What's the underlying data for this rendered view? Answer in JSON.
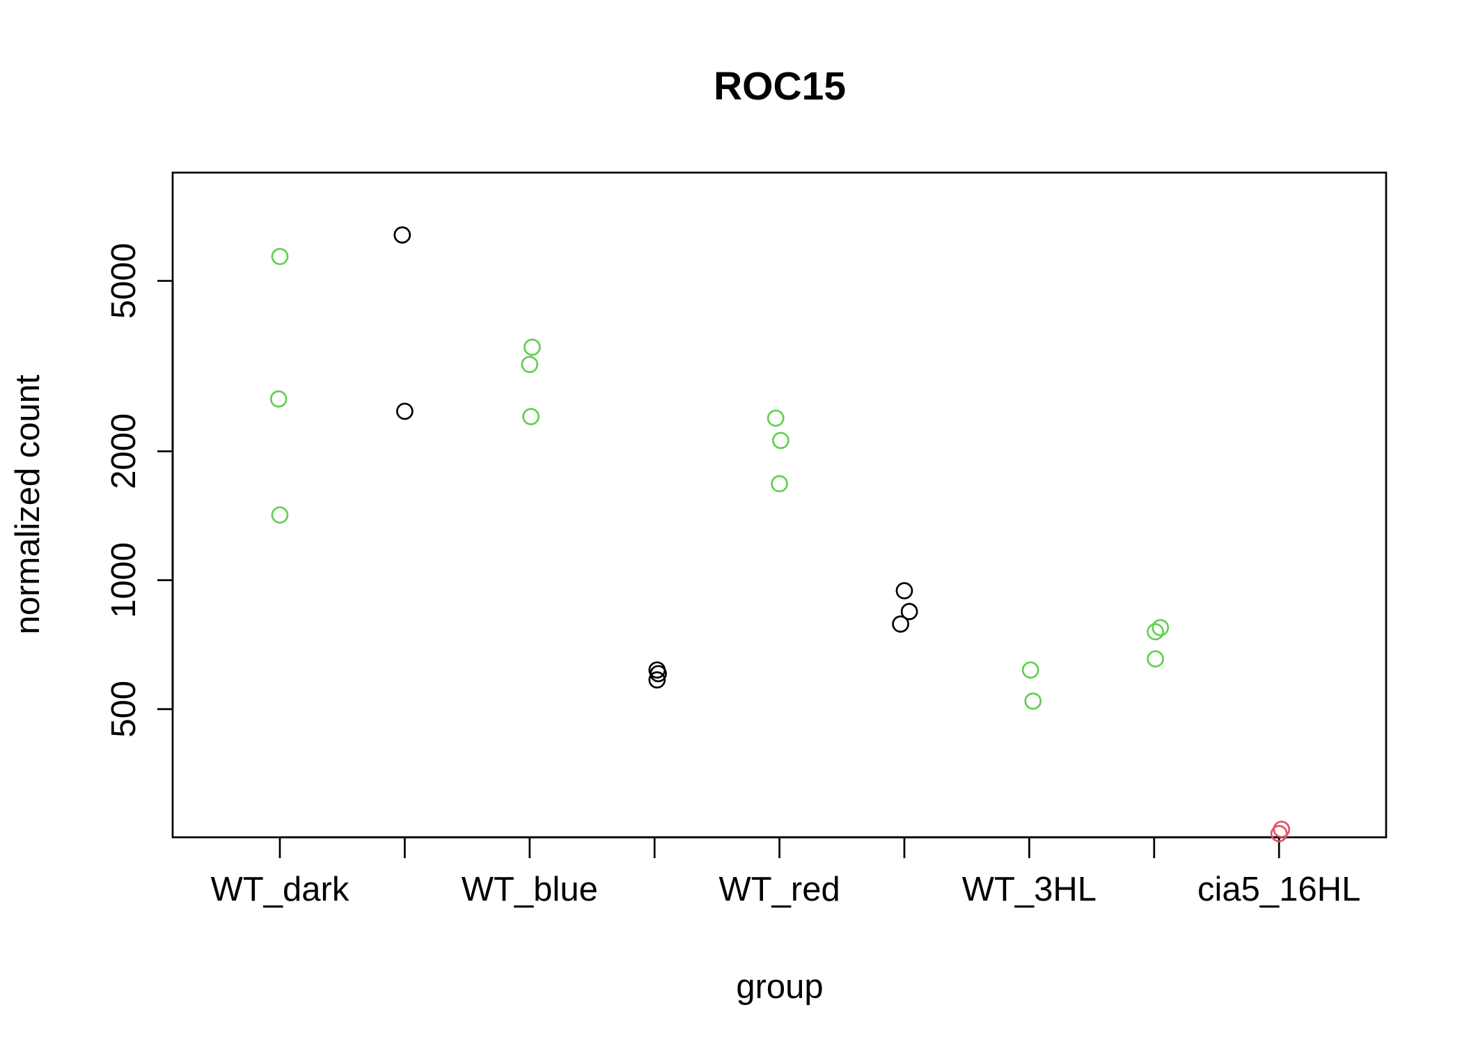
{
  "chart_data": {
    "type": "scatter",
    "title": "ROC15",
    "xlabel": "group",
    "ylabel": "normalized count",
    "y_scale": "log",
    "ylim": [
      251,
      8950
    ],
    "y_ticks": [
      500,
      1000,
      2000,
      5000
    ],
    "categories": [
      "WT_dark",
      "",
      "WT_blue",
      "",
      "WT_red",
      "",
      "WT_3HL",
      "",
      "cia5_16HL"
    ],
    "x_tick_labels_shown": [
      "WT_dark",
      "WT_blue",
      "WT_red",
      "WT_3HL",
      "cia5_16HL"
    ],
    "grid": false,
    "legend": "none",
    "points": [
      {
        "x": 1.0,
        "y": 5700,
        "color": "#61D04F"
      },
      {
        "x": 0.99,
        "y": 2650,
        "color": "#61D04F"
      },
      {
        "x": 1.0,
        "y": 1420,
        "color": "#61D04F"
      },
      {
        "x": 1.98,
        "y": 6400,
        "color": "#000000"
      },
      {
        "x": 2.0,
        "y": 2480,
        "color": "#000000"
      },
      {
        "x": 3.02,
        "y": 3500,
        "color": "#61D04F"
      },
      {
        "x": 3.0,
        "y": 3190,
        "color": "#61D04F"
      },
      {
        "x": 3.01,
        "y": 2410,
        "color": "#61D04F"
      },
      {
        "x": 4.02,
        "y": 617,
        "color": "#000000"
      },
      {
        "x": 4.03,
        "y": 605,
        "color": "#000000"
      },
      {
        "x": 4.02,
        "y": 585,
        "color": "#000000"
      },
      {
        "x": 4.97,
        "y": 2390,
        "color": "#61D04F"
      },
      {
        "x": 5.01,
        "y": 2120,
        "color": "#61D04F"
      },
      {
        "x": 5.0,
        "y": 1680,
        "color": "#61D04F"
      },
      {
        "x": 6.0,
        "y": 945,
        "color": "#000000"
      },
      {
        "x": 6.04,
        "y": 845,
        "color": "#000000"
      },
      {
        "x": 5.97,
        "y": 790,
        "color": "#000000"
      },
      {
        "x": 7.01,
        "y": 617,
        "color": "#61D04F"
      },
      {
        "x": 7.03,
        "y": 522,
        "color": "#61D04F"
      },
      {
        "x": 8.05,
        "y": 775,
        "color": "#61D04F"
      },
      {
        "x": 8.01,
        "y": 758,
        "color": "#61D04F"
      },
      {
        "x": 8.01,
        "y": 655,
        "color": "#61D04F"
      },
      {
        "x": 9.02,
        "y": 262,
        "color": "#DF536B"
      },
      {
        "x": 9.0,
        "y": 256,
        "color": "#DF536B"
      }
    ]
  }
}
